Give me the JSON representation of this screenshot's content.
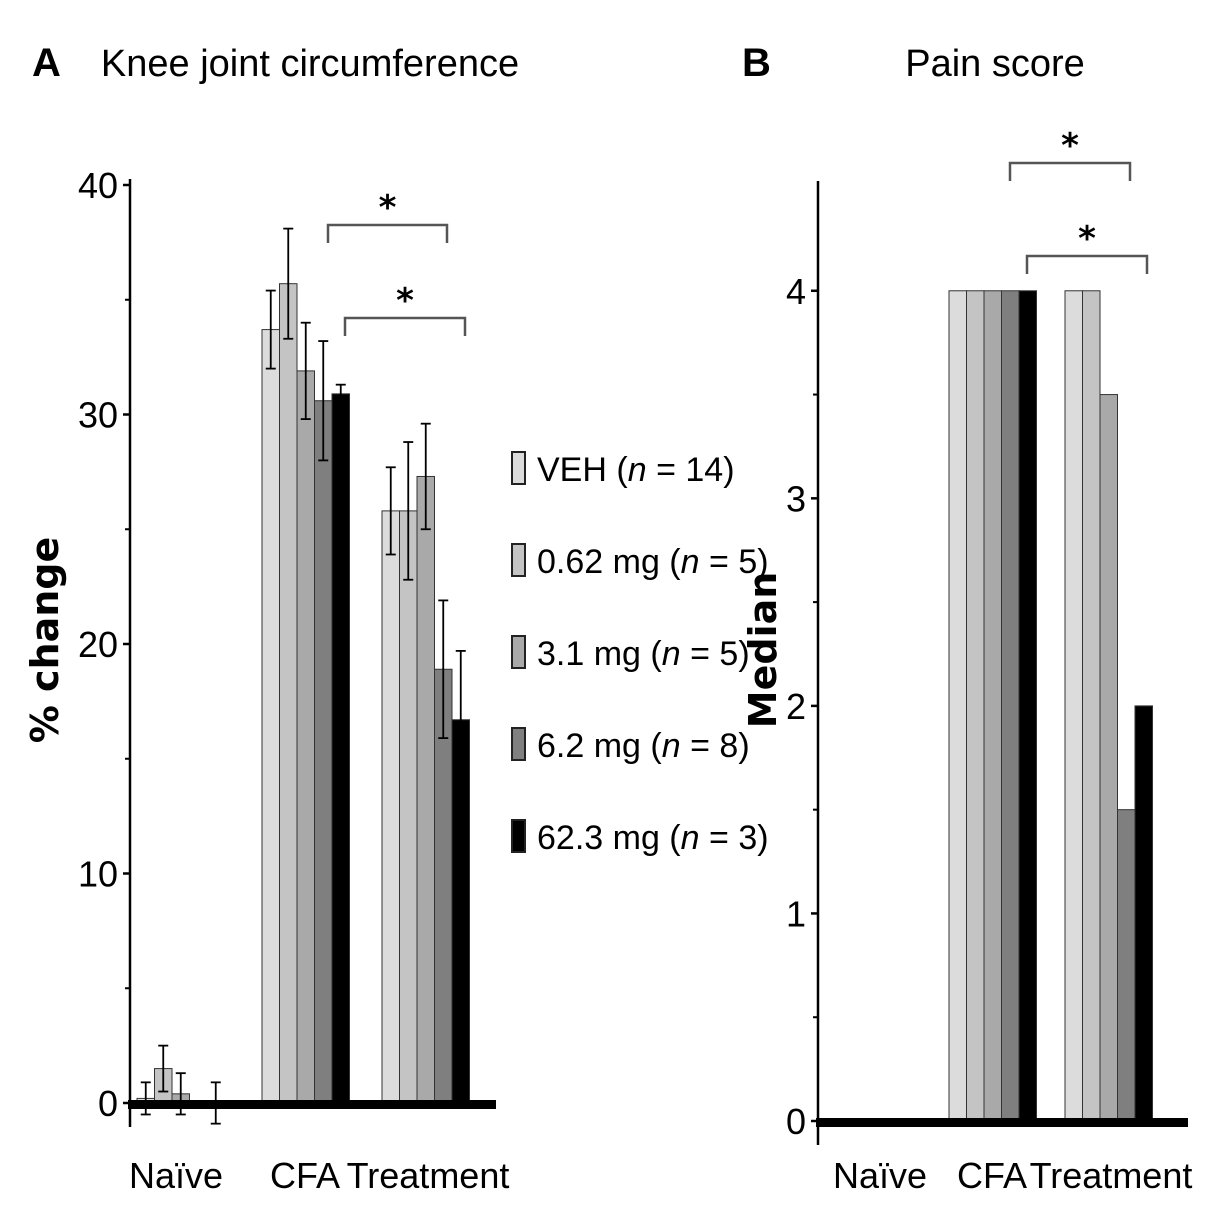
{
  "colors": {
    "VEH": "#dcdcdc",
    "0.62 mg": "#c4c4c4",
    "3.1 mg": "#a9a9a9",
    "6.2 mg": "#7f7f7f",
    "62.3 mg": "#000000",
    "axis": "#000000",
    "bracket": "#555555",
    "bar_outline": "#333333"
  },
  "legend": [
    {
      "name": "VEH",
      "n": "14"
    },
    {
      "name": "0.62 mg",
      "n": "5"
    },
    {
      "name": "3.1 mg",
      "n": "5"
    },
    {
      "name": "6.2 mg",
      "n": "8"
    },
    {
      "name": "62.3 mg",
      "n": "3"
    }
  ],
  "legend_n_label": "n",
  "chart_data": [
    {
      "type": "bar",
      "panel": "A",
      "title": "Knee joint circumference",
      "ylabel": "% change",
      "xlabel": "",
      "ylim": [
        0,
        40
      ],
      "yticks": [
        "0",
        "10",
        "20",
        "30",
        "40"
      ],
      "categories": [
        "Naïve",
        "CFA",
        "Treatment"
      ],
      "series": [
        {
          "name": "VEH",
          "values": [
            0.2,
            33.7,
            25.8
          ],
          "errors": [
            0.7,
            1.7,
            1.9
          ]
        },
        {
          "name": "0.62 mg",
          "values": [
            1.5,
            35.7,
            25.8
          ],
          "errors": [
            1.0,
            2.4,
            3.0
          ]
        },
        {
          "name": "3.1 mg",
          "values": [
            0.4,
            31.9,
            27.3
          ],
          "errors": [
            0.9,
            2.1,
            2.3
          ]
        },
        {
          "name": "6.2 mg",
          "values": [
            0.0,
            30.6,
            18.9
          ],
          "errors": [
            0.0,
            2.6,
            3.0
          ]
        },
        {
          "name": "62.3 mg",
          "values": [
            0.0,
            30.9,
            16.7
          ],
          "errors": [
            0.9,
            0.4,
            3.0
          ]
        }
      ],
      "significance": [
        {
          "label": "*",
          "from": "CFA 6.2 mg",
          "to": "Treatment 6.2 mg"
        },
        {
          "label": "*",
          "from": "CFA 62.3 mg",
          "to": "Treatment 62.3 mg"
        }
      ],
      "legend_position": "right"
    },
    {
      "type": "bar",
      "panel": "B",
      "title": "Pain score",
      "ylabel": "Median",
      "xlabel": "",
      "ylim": [
        0,
        4.5
      ],
      "yticks": [
        "0",
        "1",
        "2",
        "3",
        "4"
      ],
      "categories": [
        "Naïve",
        "CFA",
        "Treatment"
      ],
      "series": [
        {
          "name": "VEH",
          "values": [
            0,
            4,
            4
          ]
        },
        {
          "name": "0.62 mg",
          "values": [
            0,
            4,
            4
          ]
        },
        {
          "name": "3.1 mg",
          "values": [
            0,
            4,
            3.5
          ]
        },
        {
          "name": "6.2 mg",
          "values": [
            0,
            4,
            1.5
          ]
        },
        {
          "name": "62.3 mg",
          "values": [
            0,
            4,
            2
          ]
        }
      ],
      "significance": [
        {
          "label": "*",
          "from": "CFA 6.2 mg",
          "to": "Treatment 6.2 mg"
        },
        {
          "label": "*",
          "from": "CFA 62.3 mg",
          "to": "Treatment 62.3 mg"
        }
      ]
    }
  ]
}
